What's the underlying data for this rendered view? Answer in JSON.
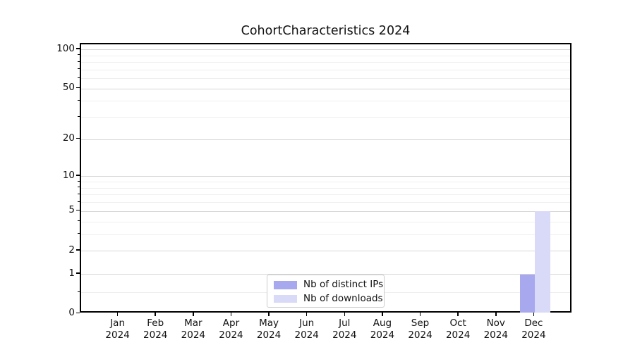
{
  "chart_data": {
    "type": "bar",
    "title": "CohortCharacteristics 2024",
    "categories": [
      {
        "month": "Jan",
        "year": "2024"
      },
      {
        "month": "Feb",
        "year": "2024"
      },
      {
        "month": "Mar",
        "year": "2024"
      },
      {
        "month": "Apr",
        "year": "2024"
      },
      {
        "month": "May",
        "year": "2024"
      },
      {
        "month": "Jun",
        "year": "2024"
      },
      {
        "month": "Jul",
        "year": "2024"
      },
      {
        "month": "Aug",
        "year": "2024"
      },
      {
        "month": "Sep",
        "year": "2024"
      },
      {
        "month": "Oct",
        "year": "2024"
      },
      {
        "month": "Nov",
        "year": "2024"
      },
      {
        "month": "Dec",
        "year": "2024"
      }
    ],
    "series": [
      {
        "name": "Nb of distinct IPs",
        "color": "#a8a8ef",
        "values": [
          0,
          0,
          0,
          0,
          0,
          0,
          0,
          0,
          0,
          0,
          0,
          1
        ]
      },
      {
        "name": "Nb of downloads",
        "color": "#d9d9f8",
        "values": [
          0,
          0,
          0,
          0,
          0,
          0,
          0,
          0,
          0,
          0,
          0,
          5
        ]
      }
    ],
    "xlabel": "",
    "ylabel": "",
    "yscale": "log1p",
    "ylim": [
      0,
      110
    ],
    "yticks": [
      0,
      1,
      2,
      5,
      10,
      20,
      50,
      100
    ],
    "yticks_minor": [
      0.45,
      3,
      4,
      6,
      7,
      8,
      9,
      30,
      40,
      60,
      70,
      80,
      90
    ],
    "grid": true,
    "legend_position": "lower center"
  },
  "styles": {
    "background": "#ffffff",
    "spine": "#000000",
    "grid_major": "#d6d6d6",
    "grid_minor": "#efefef",
    "tick_color": "#000000",
    "text_color": "#111111",
    "legend_border": "#cccccc"
  }
}
